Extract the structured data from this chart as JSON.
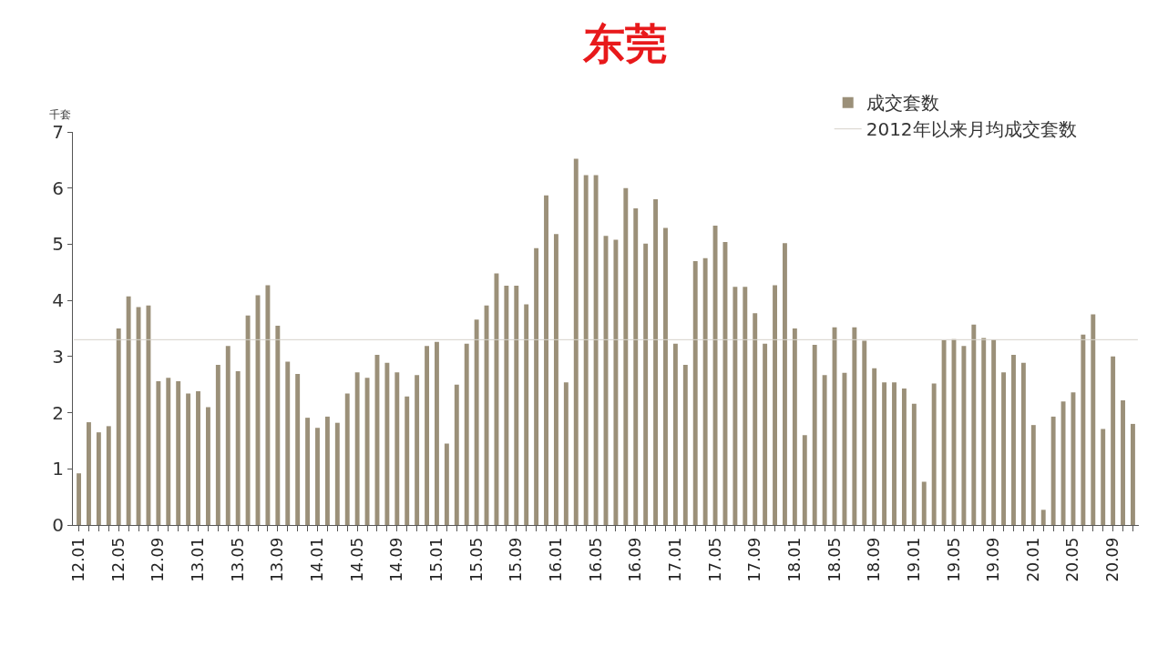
{
  "chart_data": {
    "type": "bar",
    "title": "东莞",
    "ylabel": "千套",
    "categories": [
      "12.01",
      null,
      null,
      null,
      "12.05",
      null,
      null,
      null,
      "12.09",
      null,
      null,
      null,
      "13.01",
      null,
      null,
      null,
      "13.05",
      null,
      null,
      null,
      "13.09",
      null,
      null,
      null,
      "14.01",
      null,
      null,
      null,
      "14.05",
      null,
      null,
      null,
      "14.09",
      null,
      null,
      null,
      "15.01",
      null,
      null,
      null,
      "15.05",
      null,
      null,
      null,
      "15.09",
      null,
      null,
      null,
      "16.01",
      null,
      null,
      null,
      "16.05",
      null,
      null,
      null,
      "16.09",
      null,
      null,
      null,
      "17.01",
      null,
      null,
      null,
      "17.05",
      null,
      null,
      null,
      "17.09",
      null,
      null,
      null,
      "18.01",
      null,
      null,
      null,
      "18.05",
      null,
      null,
      null,
      "18.09",
      null,
      null,
      null,
      "19.01",
      null,
      null,
      null,
      "19.05",
      null,
      null,
      null,
      "19.09",
      null,
      null,
      null,
      "20.01",
      null,
      null,
      null,
      "20.05",
      null,
      null,
      null,
      "20.09",
      null,
      null
    ],
    "series": [
      {
        "name": "成交套数",
        "color": "#9b9079",
        "values": [
          0.92,
          1.83,
          1.65,
          1.76,
          3.5,
          4.07,
          3.88,
          3.91,
          2.56,
          2.62,
          2.56,
          2.34,
          2.38,
          2.1,
          2.85,
          3.19,
          2.74,
          3.73,
          4.09,
          4.27,
          3.55,
          2.91,
          2.69,
          1.91,
          1.73,
          1.93,
          1.82,
          2.34,
          2.72,
          2.62,
          3.03,
          2.89,
          2.72,
          2.29,
          2.67,
          3.19,
          3.26,
          1.45,
          2.5,
          3.23,
          3.66,
          3.91,
          4.48,
          4.26,
          4.26,
          3.93,
          4.93,
          5.87,
          5.18,
          2.54,
          6.52,
          6.23,
          6.23,
          5.15,
          5.08,
          6.0,
          5.64,
          5.01,
          5.8,
          5.29,
          3.23,
          2.85,
          4.7,
          4.75,
          5.33,
          5.04,
          4.24,
          4.24,
          3.77,
          3.23,
          4.27,
          5.02,
          3.5,
          1.6,
          3.21,
          2.67,
          3.52,
          2.71,
          3.52,
          3.28,
          2.79,
          2.54,
          2.54,
          2.43,
          2.16,
          0.77,
          2.52,
          3.29,
          3.31,
          3.19,
          3.57,
          3.33,
          3.3,
          2.72,
          3.03,
          2.89,
          1.78,
          0.27,
          1.93,
          2.2,
          2.36,
          3.39,
          3.75,
          1.71,
          3.0,
          2.22,
          1.8
        ]
      }
    ],
    "ref_lines": [
      {
        "axis": "y",
        "value": 3.3,
        "label": "2012年以来月均成交套数",
        "color": "#d6d2ca",
        "line_style": "solid"
      }
    ],
    "ylim": [
      0,
      7
    ],
    "yticks": [
      0,
      1,
      2,
      3,
      4,
      5,
      6,
      7
    ],
    "legend": "top right"
  }
}
